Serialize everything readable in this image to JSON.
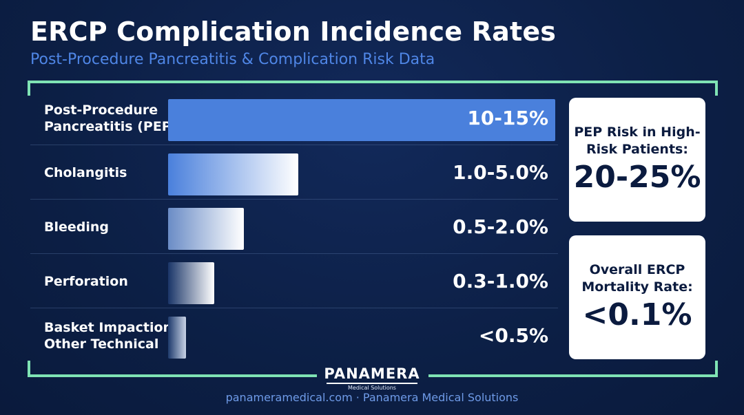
{
  "header": {
    "title": "ERCP Complication Incidence Rates",
    "subtitle": "Post-Procedure Pancreatitis & Complication Risk Data"
  },
  "chart_data": {
    "type": "bar",
    "orientation": "horizontal",
    "categories": [
      [
        "Post-Procedure",
        "Pancreatitis (PEP)"
      ],
      [
        "Cholangitis"
      ],
      [
        "Bleeding"
      ],
      [
        "Perforation"
      ],
      [
        "Basket Impaction",
        "Other Technical"
      ]
    ],
    "value_labels": [
      "10-15%",
      "1.0-5.0%",
      "0.5-2.0%",
      "0.3-1.0%",
      "<0.5%"
    ],
    "values": [
      15,
      5.0,
      2.0,
      1.0,
      0.5
    ],
    "xlim": [
      0,
      15
    ],
    "grid": false,
    "colors": {
      "bar_primary": "#4a80dc",
      "bar_light": "#ffffff",
      "bar_fade": "#6a8cc6"
    }
  },
  "cards": [
    {
      "label": [
        "PEP Risk in High-",
        "Risk Patients:"
      ],
      "value": "20-25%"
    },
    {
      "label": [
        "Overall ERCP",
        "Mortality Rate:"
      ],
      "value": "<0.1%"
    }
  ],
  "logo": {
    "name": "PANAMERA",
    "tagline": "Medical Solutions"
  },
  "footer": {
    "text": "panameramedical.com · Panamera Medical Solutions"
  },
  "theme": {
    "background": "#0d2149",
    "accent": "#7fe3b4",
    "subtitle_color": "#4f86e6"
  }
}
